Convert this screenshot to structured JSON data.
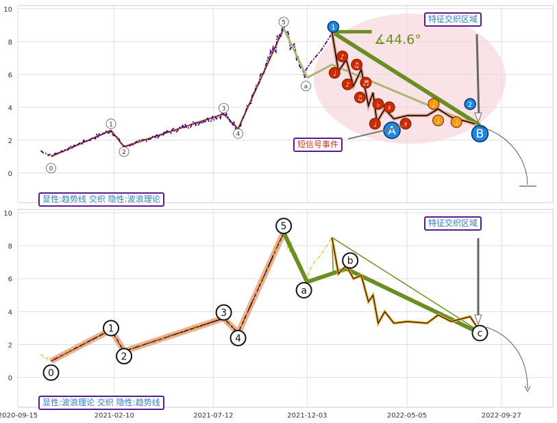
{
  "chart_data": [
    {
      "type": "line",
      "panel": "top",
      "annotation_text": "显性:趋势线 交织 隐性:波浪理论",
      "region_label": "特征交织区域",
      "event_label": "短信号事件",
      "angle_label": "∡44.6°",
      "ylim": [
        -1.8,
        10.2
      ],
      "yticks": [
        0,
        2,
        4,
        6,
        8,
        10
      ],
      "grid": true,
      "waves": [
        {
          "label": "0",
          "x": "2020-11-05",
          "y": 1.0,
          "lx": "2020-11-05",
          "ly": 0.3
        },
        {
          "label": "1",
          "x": "2021-02-05",
          "y": 2.6,
          "lx": "2021-02-05",
          "ly": 3.0
        },
        {
          "label": "2",
          "x": "2021-02-25",
          "y": 1.6,
          "lx": "2021-02-25",
          "ly": 1.3
        },
        {
          "label": "3",
          "x": "2021-07-28",
          "y": 3.6,
          "lx": "2021-07-28",
          "ly": 3.95
        },
        {
          "label": "4",
          "x": "2021-08-19",
          "y": 2.7,
          "lx": "2021-08-19",
          "ly": 2.4
        },
        {
          "label": "5",
          "x": "2021-10-28",
          "y": 8.8,
          "lx": "2021-10-28",
          "ly": 9.2
        },
        {
          "label": "a",
          "x": "2021-12-03",
          "y": 5.8,
          "lx": "2021-12-01",
          "ly": 5.3
        }
      ],
      "price_line_color": "#4b0082",
      "numbered_markers": [
        {
          "label": "1",
          "x": "2022-01-12",
          "y": 8.9,
          "color": "#1e88e5"
        },
        {
          "label": "2",
          "x": "2022-08-10",
          "y": 4.2,
          "color": "#1e88e5"
        }
      ],
      "letter_markers": [
        {
          "label": "A",
          "x": "2022-04-12",
          "y": 2.6,
          "color": "#1e88e5"
        },
        {
          "label": "B",
          "x": "2022-08-25",
          "y": 2.4,
          "color": "#1e88e5"
        }
      ],
      "note_markers": [
        {
          "label": "♪",
          "x": "2022-01-26",
          "y": 7.1,
          "color": "#cc2a00"
        },
        {
          "label": "♫",
          "x": "2022-02-17",
          "y": 6.6,
          "color": "#cc2a00"
        },
        {
          "label": "♩",
          "x": "2022-01-14",
          "y": 6.1,
          "color": "#cc2a00"
        },
        {
          "label": "♪",
          "x": "2022-02-03",
          "y": 5.4,
          "color": "#cc2a00"
        },
        {
          "label": "♬",
          "x": "2022-03-03",
          "y": 5.5,
          "color": "#cc2a00"
        },
        {
          "label": "♫",
          "x": "2022-02-22",
          "y": 4.6,
          "color": "#cc2a00"
        },
        {
          "label": "♭",
          "x": "2022-03-22",
          "y": 4.2,
          "color": "#cc2a00"
        },
        {
          "label": "♯",
          "x": "2022-04-08",
          "y": 4.0,
          "color": "#cc2a00"
        },
        {
          "label": "♩",
          "x": "2022-03-17",
          "y": 3.0,
          "color": "#cc2a00"
        },
        {
          "label": "♯",
          "x": "2022-05-03",
          "y": 3.0,
          "color": "#cc2a00"
        },
        {
          "label": "♩",
          "x": "2022-06-15",
          "y": 4.2,
          "color": "#f39c12"
        },
        {
          "label": "♩",
          "x": "2022-06-22",
          "y": 3.2,
          "color": "#f39c12"
        },
        {
          "label": "♩",
          "x": "2022-07-20",
          "y": 3.1,
          "color": "#f39c12"
        }
      ],
      "zigzag": [
        {
          "x": "2022-01-10",
          "y": 8.6
        },
        {
          "x": "2022-01-20",
          "y": 6.2
        },
        {
          "x": "2022-02-01",
          "y": 6.9
        },
        {
          "x": "2022-02-12",
          "y": 5.3
        },
        {
          "x": "2022-02-24",
          "y": 6.3
        },
        {
          "x": "2022-03-07",
          "y": 4.1
        },
        {
          "x": "2022-03-14",
          "y": 4.9
        },
        {
          "x": "2022-03-20",
          "y": 3.1
        },
        {
          "x": "2022-04-01",
          "y": 3.9
        },
        {
          "x": "2022-04-15",
          "y": 3.3
        },
        {
          "x": "2022-05-06",
          "y": 3.5
        },
        {
          "x": "2022-06-05",
          "y": 3.5
        },
        {
          "x": "2022-06-22",
          "y": 3.9
        },
        {
          "x": "2022-07-12",
          "y": 3.4
        },
        {
          "x": "2022-08-17",
          "y": 3.0
        }
      ]
    },
    {
      "type": "line",
      "panel": "bottom",
      "annotation_text": "显性:波浪理论 交织 隐性:趋势线",
      "region_label": "特征交织区域",
      "ylim": [
        -1.8,
        10.2
      ],
      "yticks": [
        0,
        2,
        4,
        6,
        8,
        10
      ],
      "grid": true,
      "price_line_color": "#f0b030",
      "waves": [
        {
          "label": "0",
          "x": "2020-11-05",
          "y": 1.0,
          "lx": "2020-11-05",
          "ly": 0.3
        },
        {
          "label": "1",
          "x": "2021-02-05",
          "y": 2.9,
          "lx": "2021-02-05",
          "ly": 3.0
        },
        {
          "label": "2",
          "x": "2021-02-25",
          "y": 1.6,
          "lx": "2021-02-25",
          "ly": 1.3
        },
        {
          "label": "3",
          "x": "2021-07-28",
          "y": 3.6,
          "lx": "2021-07-28",
          "ly": 3.95
        },
        {
          "label": "4",
          "x": "2021-08-19",
          "y": 2.7,
          "lx": "2021-08-19",
          "ly": 2.4
        },
        {
          "label": "5",
          "x": "2021-10-28",
          "y": 8.8,
          "lx": "2021-10-28",
          "ly": 9.2
        },
        {
          "label": "a",
          "x": "2021-12-03",
          "y": 5.8,
          "lx": "2021-11-28",
          "ly": 5.3
        },
        {
          "label": "b",
          "x": "2022-02-01",
          "y": 6.6,
          "lx": "2022-02-07",
          "ly": 7.1
        },
        {
          "label": "c",
          "x": "2022-08-25",
          "y": 2.7,
          "lx": "2022-08-25",
          "ly": 2.7
        }
      ]
    }
  ],
  "x_axis": {
    "ticks": [
      "2020-09-15",
      "2021-02-10",
      "2021-07-12",
      "2021-12-03",
      "2022-05-05",
      "2022-09-27"
    ],
    "xlim": [
      "2020-09-15",
      "2022-12-15"
    ]
  }
}
